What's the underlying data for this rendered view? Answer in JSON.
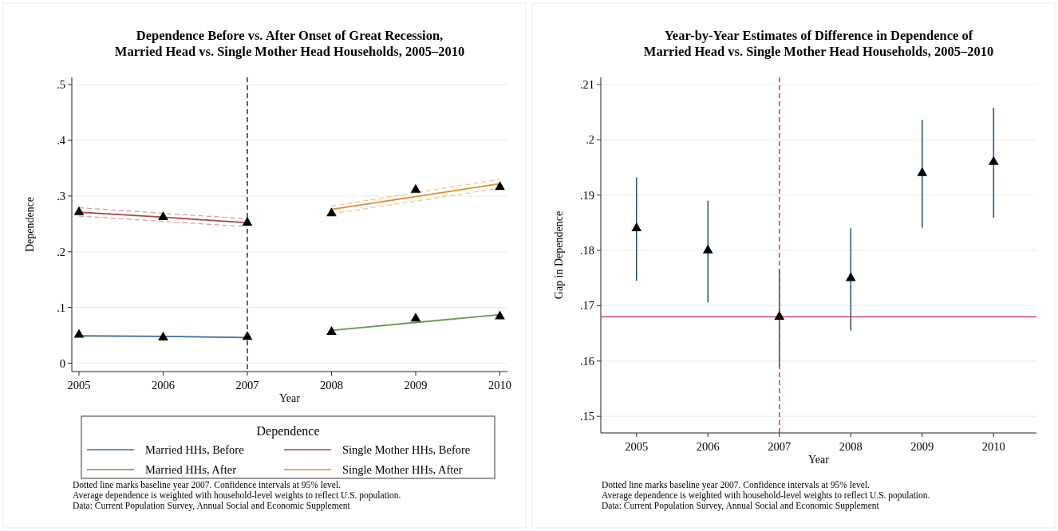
{
  "chart_data": [
    {
      "type": "line",
      "title": "Dependence Before vs. After Onset of Great Recession,\nMarried Head vs. Single Mother Head Households, 2005–2010",
      "xlabel": "Year",
      "ylabel": "Dependence",
      "legend_title": "Dependence",
      "xlim": [
        2004.915,
        2010.09
      ],
      "xticks": [
        2005,
        2006,
        2007,
        2008,
        2009,
        2010
      ],
      "ylim": [
        -0.015,
        0.513
      ],
      "yticks": [
        {
          "value": 0,
          "label": "0"
        },
        {
          "value": 0.1,
          "label": ".1"
        },
        {
          "value": 0.2,
          "label": ".2"
        },
        {
          "value": 0.3,
          "label": ".3"
        },
        {
          "value": 0.4,
          "label": ".4"
        },
        {
          "value": 0.5,
          "label": ".5"
        }
      ],
      "grid": "y",
      "legend": "bottom",
      "line_style": "solid",
      "ref_lines": [
        {
          "axis": "x",
          "value": 2007,
          "color": "#222222",
          "line_style": "dashed"
        }
      ],
      "series": [
        {
          "name": "Married HHs, Before",
          "color": "#3b6ea5",
          "x": [
            2005,
            2006,
            2007
          ],
          "values": [
            0.049,
            0.048,
            0.046
          ]
        },
        {
          "name": "Single Mother HHs, Before",
          "color": "#b0413e",
          "x": [
            2005,
            2006,
            2007
          ],
          "values": [
            0.271,
            0.262,
            0.252
          ]
        },
        {
          "name": "Married HHs, After",
          "color": "#6a9a4a",
          "x": [
            2008,
            2009,
            2010
          ],
          "values": [
            0.059,
            0.073,
            0.087
          ]
        },
        {
          "name": "Single Mother HHs, After",
          "color": "#ea8a2c",
          "x": [
            2008,
            2009,
            2010
          ],
          "values": [
            0.276,
            0.299,
            0.322
          ]
        },
        {
          "color": "#dba09e",
          "line_style": "dashed",
          "x": [
            2005,
            2007
          ],
          "values": [
            0.279,
            0.259
          ]
        },
        {
          "color": "#dba09e",
          "line_style": "dashed",
          "x": [
            2005,
            2007
          ],
          "values": [
            0.264,
            0.245
          ]
        },
        {
          "color": "#f4c38f",
          "line_style": "dashed",
          "x": [
            2008,
            2010
          ],
          "values": [
            0.282,
            0.33
          ]
        },
        {
          "color": "#f4c38f",
          "line_style": "dashed",
          "x": [
            2008,
            2010
          ],
          "values": [
            0.268,
            0.314
          ]
        },
        {
          "type": "scatter",
          "marker": "triangle",
          "color": "#000000",
          "x": [
            2005,
            2006,
            2007,
            2008,
            2009,
            2010
          ],
          "values": [
            0.051,
            0.046,
            0.047,
            0.056,
            0.08,
            0.084
          ]
        },
        {
          "type": "scatter",
          "marker": "triangle",
          "color": "#000000",
          "x": [
            2005,
            2006,
            2007,
            2008,
            2009,
            2010
          ],
          "values": [
            0.271,
            0.262,
            0.252,
            0.269,
            0.311,
            0.316
          ]
        }
      ],
      "annotations": [
        "Dotted line marks baseline year 2007. Confidence intervals at 95% level.",
        "Average dependence is weighted with household-level weights to reflect U.S. population.",
        "Data: Current Population Survey, Annual Social and Economic Supplement"
      ]
    },
    {
      "type": "scatter",
      "title": "Year-by-Year Estimates of Difference in Dependence of\nMarried Head vs. Single Mother Head Households, 2005–2010",
      "xlabel": "Year",
      "ylabel": "Gap in Dependence",
      "xlim": [
        2004.5,
        2010.6
      ],
      "xticks": [
        2005,
        2006,
        2007,
        2008,
        2009,
        2010
      ],
      "ylim": [
        0.147,
        0.2113
      ],
      "yticks": [
        {
          "value": 0.15,
          "label": ".15"
        },
        {
          "value": 0.16,
          "label": ".16"
        },
        {
          "value": 0.17,
          "label": ".17"
        },
        {
          "value": 0.18,
          "label": ".18"
        },
        {
          "value": 0.19,
          "label": ".19"
        },
        {
          "value": 0.2,
          "label": ".2"
        },
        {
          "value": 0.21,
          "label": ".21"
        }
      ],
      "grid": "y",
      "marker": "triangle",
      "ref_lines": [
        {
          "axis": "x",
          "value": 2007,
          "color": "#d6204e",
          "line_style": "dashed"
        },
        {
          "axis": "y",
          "value": 0.168,
          "color": "#d6204e",
          "line_style": "solid"
        }
      ],
      "series": [
        {
          "color": "#000000",
          "x": [
            2005,
            2006,
            2007,
            2008,
            2009,
            2010
          ],
          "values": [
            0.184,
            0.18,
            0.168,
            0.175,
            0.194,
            0.196
          ],
          "errors": [
            [
              0.1745,
              0.1932
            ],
            [
              0.1706,
              0.189
            ],
            [
              0.159,
              0.1765
            ],
            [
              0.1655,
              0.184
            ],
            [
              0.1841,
              0.2036
            ],
            [
              0.1859,
              0.2058
            ]
          ]
        }
      ],
      "annotations": [
        "Dotted line marks baseline year 2007. Confidence intervals at 95% level.",
        "Average dependence is weighted with household-level weights to reflect U.S. population.",
        "Data: Current Population Survey, Annual Social and Economic Supplement"
      ]
    }
  ]
}
